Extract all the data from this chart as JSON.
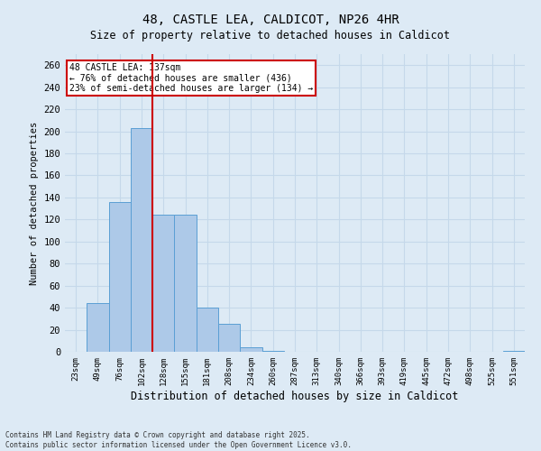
{
  "title": "48, CASTLE LEA, CALDICOT, NP26 4HR",
  "subtitle": "Size of property relative to detached houses in Caldicot",
  "xlabel": "Distribution of detached houses by size in Caldicot",
  "ylabel": "Number of detached properties",
  "categories": [
    "23sqm",
    "49sqm",
    "76sqm",
    "102sqm",
    "128sqm",
    "155sqm",
    "181sqm",
    "208sqm",
    "234sqm",
    "260sqm",
    "287sqm",
    "313sqm",
    "340sqm",
    "366sqm",
    "393sqm",
    "419sqm",
    "445sqm",
    "472sqm",
    "498sqm",
    "525sqm",
    "551sqm"
  ],
  "values": [
    0,
    44,
    136,
    203,
    124,
    124,
    40,
    25,
    4,
    1,
    0,
    0,
    0,
    0,
    0,
    0,
    0,
    0,
    0,
    0,
    1
  ],
  "bar_color": "#adc9e8",
  "bar_edge_color": "#5a9fd4",
  "vline_color": "#cc0000",
  "vline_index": 4,
  "ylim": [
    0,
    270
  ],
  "yticks": [
    0,
    20,
    40,
    60,
    80,
    100,
    120,
    140,
    160,
    180,
    200,
    220,
    240,
    260
  ],
  "annotation_title": "48 CASTLE LEA: 137sqm",
  "annotation_line1": "← 76% of detached houses are smaller (436)",
  "annotation_line2": "23% of semi-detached houses are larger (134) →",
  "annotation_box_color": "#cc0000",
  "grid_color": "#c5d8ea",
  "bg_color": "#ddeaf5",
  "fig_bg_color": "#ddeaf5",
  "footer1": "Contains HM Land Registry data © Crown copyright and database right 2025.",
  "footer2": "Contains public sector information licensed under the Open Government Licence v3.0."
}
